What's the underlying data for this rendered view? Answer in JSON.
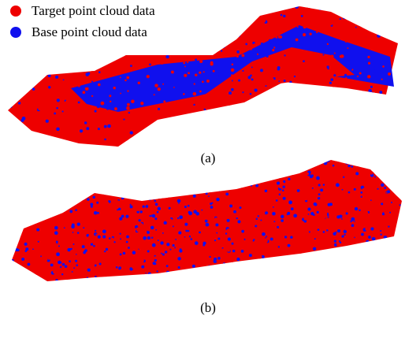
{
  "legend": {
    "items": [
      "Target point cloud data",
      "Base point cloud data"
    ]
  },
  "panels": [
    {
      "label": "(a)"
    },
    {
      "label": "(b)"
    }
  ]
}
